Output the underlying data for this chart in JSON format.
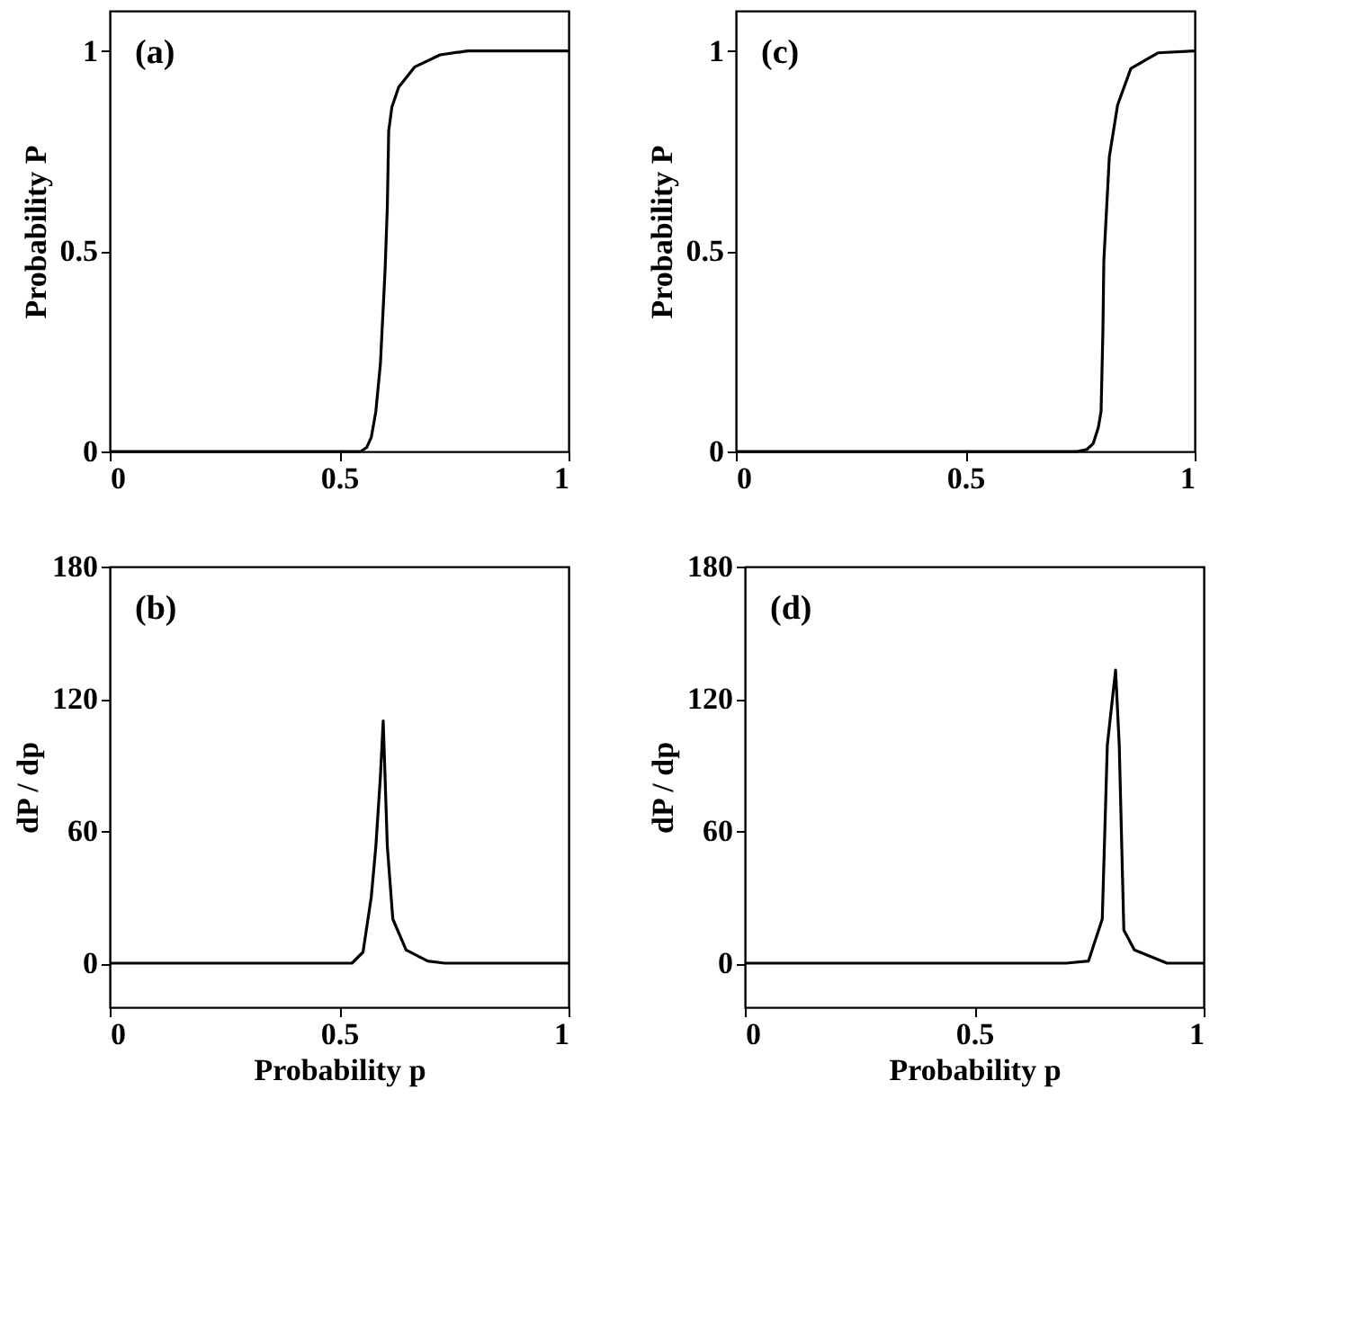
{
  "chart_data": [
    {
      "type": "line",
      "annotations": [
        "(a)"
      ],
      "ylabel": "Probability  P",
      "xlim": [
        0,
        1
      ],
      "xticks": [
        0,
        0.5,
        1
      ],
      "ylim": [
        0,
        1.1
      ],
      "yticks": [
        0,
        0.5,
        1
      ],
      "grid": false,
      "x": [
        0,
        0.5,
        0.547,
        0.56,
        0.57,
        0.58,
        0.59,
        0.6,
        0.605,
        0.608,
        0.615,
        0.63,
        0.665,
        0.72,
        0.78,
        0.9,
        1
      ],
      "series": [
        {
          "color": "#000000",
          "values": [
            0,
            0,
            0,
            0.01,
            0.035,
            0.1,
            0.22,
            0.45,
            0.61,
            0.8,
            0.86,
            0.91,
            0.96,
            0.99,
            1.0,
            1.0,
            1.0
          ]
        }
      ]
    },
    {
      "type": "line",
      "annotations": [
        "(c)"
      ],
      "ylabel": "Probability  P",
      "xlim": [
        0,
        1
      ],
      "xticks": [
        0,
        0.5,
        1
      ],
      "ylim": [
        0,
        1.1
      ],
      "yticks": [
        0,
        0.5,
        1
      ],
      "grid": false,
      "x": [
        0,
        0.7,
        0.744,
        0.765,
        0.779,
        0.79,
        0.796,
        0.8,
        0.802,
        0.814,
        0.832,
        0.861,
        0.92,
        1
      ],
      "series": [
        {
          "color": "#000000",
          "values": [
            0,
            0,
            0,
            0.005,
            0.02,
            0.06,
            0.1,
            0.3,
            0.476,
            0.735,
            0.865,
            0.956,
            0.995,
            1.0
          ]
        }
      ]
    },
    {
      "type": "line",
      "annotations": [
        "(b)"
      ],
      "xlabel": "Probability p",
      "ylabel": "dP / dp",
      "xlim": [
        0,
        1
      ],
      "xticks": [
        0,
        0.5,
        1
      ],
      "ylim": [
        -20,
        180
      ],
      "yticks": [
        0,
        60,
        120,
        180
      ],
      "grid": false,
      "x": [
        0,
        0.5,
        0.528,
        0.552,
        0.57,
        0.58,
        0.59,
        0.596,
        0.6,
        0.605,
        0.617,
        0.646,
        0.693,
        0.73,
        1
      ],
      "series": [
        {
          "color": "#000000",
          "values": [
            0,
            0,
            0,
            5,
            30,
            53,
            85,
            110,
            85,
            53,
            20,
            6,
            1,
            0,
            0
          ]
        }
      ]
    },
    {
      "type": "line",
      "annotations": [
        "(d)"
      ],
      "xlabel": "Probability p",
      "ylabel": "dP / dp",
      "xlim": [
        0,
        1
      ],
      "xticks": [
        0,
        0.5,
        1
      ],
      "ylim": [
        -20,
        180
      ],
      "yticks": [
        0,
        60,
        120,
        180
      ],
      "grid": false,
      "x": [
        0,
        0.7,
        0.749,
        0.779,
        0.79,
        0.808,
        0.816,
        0.826,
        0.849,
        0.885,
        0.92,
        1
      ],
      "series": [
        {
          "color": "#000000",
          "values": [
            0,
            0,
            1,
            20,
            99,
            133,
            99,
            15,
            6,
            3,
            0,
            0
          ]
        }
      ]
    }
  ]
}
